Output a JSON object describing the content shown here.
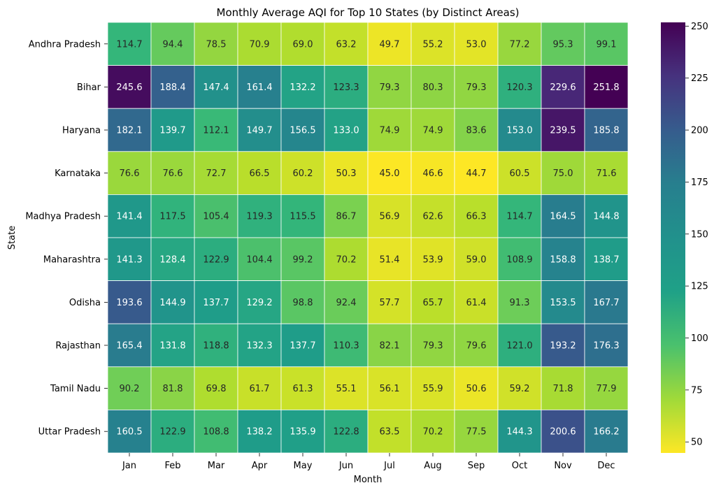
{
  "chart_data": {
    "type": "heatmap",
    "title": "Monthly Average AQI for Top 10 States (by Distinct Areas)",
    "xlabel": "Month",
    "ylabel": "State",
    "x": [
      "Jan",
      "Feb",
      "Mar",
      "Apr",
      "May",
      "Jun",
      "Jul",
      "Aug",
      "Sep",
      "Oct",
      "Nov",
      "Dec"
    ],
    "y": [
      "Andhra Pradesh",
      "Bihar",
      "Haryana",
      "Karnataka",
      "Madhya Pradesh",
      "Maharashtra",
      "Odisha",
      "Rajasthan",
      "Tamil Nadu",
      "Uttar Pradesh"
    ],
    "values": [
      [
        114.7,
        94.4,
        78.5,
        70.9,
        69.0,
        63.2,
        49.7,
        55.2,
        53.0,
        77.2,
        95.3,
        99.1
      ],
      [
        245.6,
        188.4,
        147.4,
        161.4,
        132.2,
        123.3,
        79.3,
        80.3,
        79.3,
        120.3,
        229.6,
        251.8
      ],
      [
        182.1,
        139.7,
        112.1,
        149.7,
        156.5,
        133.0,
        74.9,
        74.9,
        83.6,
        153.0,
        239.5,
        185.8
      ],
      [
        76.6,
        76.6,
        72.7,
        66.5,
        60.2,
        50.3,
        45.0,
        46.6,
        44.7,
        60.5,
        75.0,
        71.6
      ],
      [
        141.4,
        117.5,
        105.4,
        119.3,
        115.5,
        86.7,
        56.9,
        62.6,
        66.3,
        114.7,
        164.5,
        144.8
      ],
      [
        141.3,
        128.4,
        122.9,
        104.4,
        99.2,
        70.2,
        51.4,
        53.9,
        59.0,
        108.9,
        158.8,
        138.7
      ],
      [
        193.6,
        144.9,
        137.7,
        129.2,
        98.8,
        92.4,
        57.7,
        65.7,
        61.4,
        91.3,
        153.5,
        167.7
      ],
      [
        165.4,
        131.8,
        118.8,
        132.3,
        137.7,
        110.3,
        82.1,
        79.3,
        79.6,
        121.0,
        193.2,
        176.3
      ],
      [
        90.2,
        81.8,
        69.8,
        61.7,
        61.3,
        55.1,
        56.1,
        55.9,
        50.6,
        59.2,
        71.8,
        77.9
      ],
      [
        160.5,
        122.9,
        108.8,
        138.2,
        135.9,
        122.8,
        63.5,
        70.2,
        77.5,
        144.3,
        200.6,
        166.2
      ]
    ],
    "colorscale": "viridis_r",
    "vmin": 44.7,
    "vmax": 251.8,
    "colorbar_ticks": [
      50,
      75,
      100,
      125,
      150,
      175,
      200,
      225,
      250
    ],
    "annotations": true,
    "value_format": "1 decimal"
  }
}
